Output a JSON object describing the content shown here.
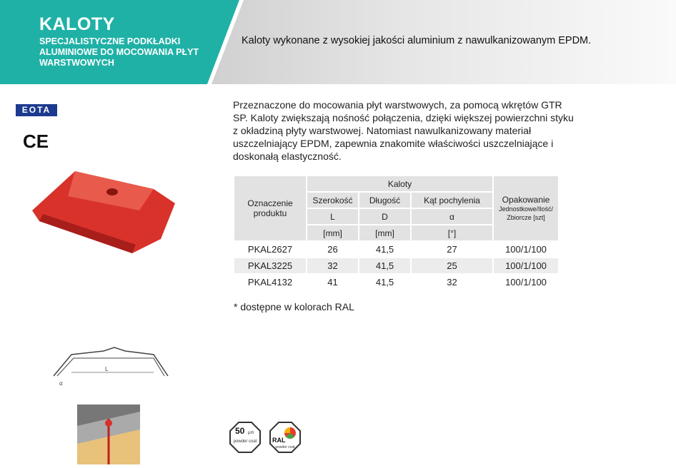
{
  "header": {
    "title": "KALOTY",
    "subtitle": "SPECJALISTYCZNE PODKŁADKI ALUMINIOWE DO MOCOWANIA PŁYT WARSTWOWYCH",
    "lead": "Kaloty wykonane z wysokiej jakości aluminium z nawulkanizowanym EPDM.",
    "teal": "#20b1a6"
  },
  "description": "Przeznaczone do mocowania płyt warstwowych, za pomocą wkrętów GTR SP. Kaloty zwiększają nośność połączenia, dzięki większej powierzchni styku z okładziną płyty warstwowej. Natomiast nawulkanizowany materiał uszczelniający EPDM, zapewnia znakomite właściwości uszczelniające i doskonałą elastyczność.",
  "logos": {
    "eota": "EOTA",
    "ce": "CE"
  },
  "table": {
    "col_product": "Oznaczenie produktu",
    "group": "Kaloty",
    "cols": [
      {
        "name": "Szerokość",
        "sym": "L",
        "unit": "[mm]"
      },
      {
        "name": "Długość",
        "sym": "D",
        "unit": "[mm]"
      },
      {
        "name": "Kąt pochylenia",
        "sym": "α",
        "unit": "[°]"
      }
    ],
    "pack": "Opakowanie",
    "pack_sub": "Jednostkowe/Ilość/ Zbiorcze [szt]",
    "rows": [
      {
        "code": "PKAL2627",
        "L": "26",
        "D": "41,5",
        "a": "27",
        "pack": "100/1/100"
      },
      {
        "code": "PKAL3225",
        "L": "32",
        "D": "41,5",
        "a": "25",
        "pack": "100/1/100"
      },
      {
        "code": "PKAL4132",
        "L": "41",
        "D": "41,5",
        "a": "32",
        "pack": "100/1/100"
      }
    ]
  },
  "note": "* dostępne w kolorach RAL",
  "drawing": {
    "dim_L": "L",
    "dim_a": "α"
  },
  "badges": {
    "coat_value": "50",
    "coat_unit": "μm",
    "coat_text": "powder coat",
    "ral": "RAL",
    "ral_text": "powder coat"
  }
}
